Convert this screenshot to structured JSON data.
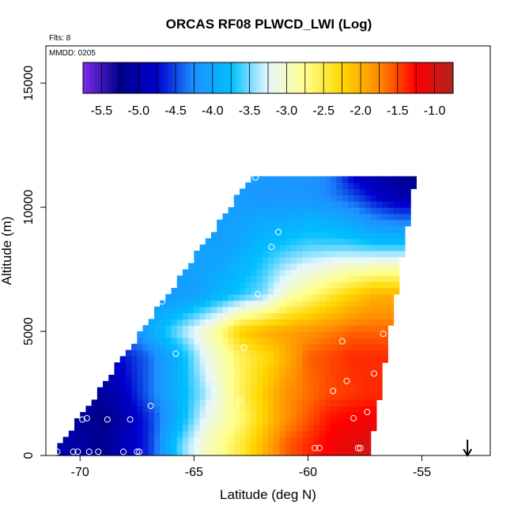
{
  "chart_data": {
    "type": "heatmap",
    "title": "ORCAS RF08 PLWCD_LWI (Log)",
    "flights_label": "Flts: 8",
    "date_label": "MMDD: 0205",
    "xlabel": "Latitude (deg N)",
    "ylabel": "Altitude (m)",
    "xlim": [
      -71.5,
      -52
    ],
    "ylim": [
      0,
      16500
    ],
    "xticks": [
      -70,
      -65,
      -60,
      -55
    ],
    "xtick_labels": [
      "-70",
      "-65",
      "-60",
      "-55"
    ],
    "yticks": [
      0,
      5000,
      10000,
      15000
    ],
    "ytick_labels": [
      "0",
      "5000",
      "10000",
      "15000"
    ],
    "colorbar": {
      "ticks": [
        "-5.5",
        "-5.0",
        "-4.5",
        "-4.0",
        "-3.5",
        "-3.0",
        "-2.5",
        "-2.0",
        "-1.5",
        "-1.0"
      ],
      "tick_values": [
        -5.5,
        -5.0,
        -4.5,
        -4.0,
        -3.5,
        -3.0,
        -2.5,
        -2.0,
        -1.5,
        -1.0
      ],
      "range": [
        -5.75,
        -0.75
      ],
      "colors": [
        "#7b2be6",
        "#00008b",
        "#0000cd",
        "#1e90ff",
        "#00bfff",
        "#e6f7ff",
        "#ffff8c",
        "#ffd700",
        "#ff8c00",
        "#ff0000",
        "#b22222"
      ]
    },
    "domain_outline": [
      [
        -71.2,
        0
      ],
      [
        -57.3,
        0
      ],
      [
        -55.2,
        11700
      ],
      [
        -62.5,
        11200
      ]
    ],
    "values_by_altitude": [
      {
        "alt": 500,
        "lat": [
          -71,
          -69,
          -67,
          -65.5,
          -64.5,
          -63,
          -61,
          -59,
          -57.5
        ],
        "v": [
          -5.0,
          -5.2,
          -4.6,
          -3.5,
          -3.0,
          -2.5,
          -1.6,
          -1.2,
          -1.0
        ]
      },
      {
        "alt": 1500,
        "lat": [
          -70.5,
          -69,
          -67,
          -65.5,
          -64.5,
          -63,
          -61,
          -59,
          -57.4
        ],
        "v": [
          -5.0,
          -5.3,
          -4.6,
          -3.8,
          -3.2,
          -2.7,
          -1.8,
          -1.3,
          -1.2
        ]
      },
      {
        "alt": 2500,
        "lat": [
          -70,
          -68.5,
          -67,
          -65.5,
          -64.5,
          -63,
          -61,
          -59,
          -57.3
        ],
        "v": [
          -5.2,
          -5.0,
          -4.4,
          -3.8,
          -3.4,
          -2.6,
          -1.8,
          -1.5,
          -1.4
        ]
      },
      {
        "alt": 4000,
        "lat": [
          -68.5,
          -67,
          -65.5,
          -64.5,
          -63,
          -61.5,
          -60,
          -58,
          -56.8
        ],
        "v": [
          -4.8,
          -4.4,
          -3.8,
          -3.2,
          -2.6,
          -2.2,
          -1.6,
          -1.4,
          -1.4
        ]
      },
      {
        "alt": 5000,
        "lat": [
          -67.5,
          -66,
          -65,
          -64,
          -63,
          -62,
          -60,
          -58,
          -56.8
        ],
        "v": [
          -4.2,
          -3.6,
          -3.2,
          -2.8,
          -2.2,
          -2.0,
          -1.8,
          -1.6,
          -1.6
        ]
      },
      {
        "alt": 6500,
        "lat": [
          -66.5,
          -65,
          -64,
          -63,
          -62,
          -61,
          -59.5,
          -58,
          -57
        ],
        "v": [
          -4.2,
          -4.1,
          -3.9,
          -3.7,
          -3.5,
          -3.0,
          -2.6,
          -2.2,
          -2.0
        ]
      },
      {
        "alt": 8500,
        "lat": [
          -65.5,
          -64,
          -63,
          -62,
          -61,
          -60,
          -58.5,
          -57
        ],
        "v": [
          -4.0,
          -4.1,
          -4.0,
          -3.8,
          -3.7,
          -3.6,
          -3.6,
          -3.7
        ]
      },
      {
        "alt": 10500,
        "lat": [
          -63.5,
          -62,
          -61,
          -60,
          -59,
          -58,
          -57,
          -56
        ],
        "v": [
          -4.1,
          -4.2,
          -4.2,
          -4.2,
          -4.3,
          -4.5,
          -4.8,
          -5.0
        ]
      },
      {
        "alt": 11300,
        "lat": [
          -62.5,
          -61,
          -60,
          -59,
          -58,
          -57,
          -56,
          -55.5
        ],
        "v": [
          -4.1,
          -4.2,
          -4.2,
          -4.3,
          -4.8,
          -5.0,
          -5.2,
          -5.3
        ]
      }
    ],
    "markers": [
      {
        "x": -71,
        "y": 150
      },
      {
        "x": -70.3,
        "y": 150
      },
      {
        "x": -70.1,
        "y": 150
      },
      {
        "x": -69.6,
        "y": 150
      },
      {
        "x": -69.2,
        "y": 150
      },
      {
        "x": -68.1,
        "y": 150
      },
      {
        "x": -67.5,
        "y": 150
      },
      {
        "x": -67.4,
        "y": 150
      },
      {
        "x": -70.6,
        "y": 1450
      },
      {
        "x": -69.9,
        "y": 1450
      },
      {
        "x": -69.7,
        "y": 1500
      },
      {
        "x": -68.8,
        "y": 1450
      },
      {
        "x": -67.8,
        "y": 1450
      },
      {
        "x": -66.9,
        "y": 2000
      },
      {
        "x": -65.8,
        "y": 4100
      },
      {
        "x": -66.4,
        "y": 6200
      },
      {
        "x": -63,
        "y": 2200
      },
      {
        "x": -62.8,
        "y": 4350
      },
      {
        "x": -62.2,
        "y": 6500
      },
      {
        "x": -61.6,
        "y": 8400
      },
      {
        "x": -61.3,
        "y": 9000
      },
      {
        "x": -62.3,
        "y": 11200
      },
      {
        "x": -59.7,
        "y": 300
      },
      {
        "x": -59.5,
        "y": 300
      },
      {
        "x": -58.9,
        "y": 2600
      },
      {
        "x": -58.3,
        "y": 3000
      },
      {
        "x": -58.5,
        "y": 4600
      },
      {
        "x": -58,
        "y": 1500
      },
      {
        "x": -57.8,
        "y": 300
      },
      {
        "x": -57.7,
        "y": 300
      },
      {
        "x": -57.4,
        "y": 1750
      },
      {
        "x": -57.1,
        "y": 3300
      },
      {
        "x": -56.7,
        "y": 4900
      },
      {
        "x": -55,
        "y": 11600
      }
    ],
    "arrow_latitude": -53,
    "grid": false,
    "legend_position": "top"
  }
}
